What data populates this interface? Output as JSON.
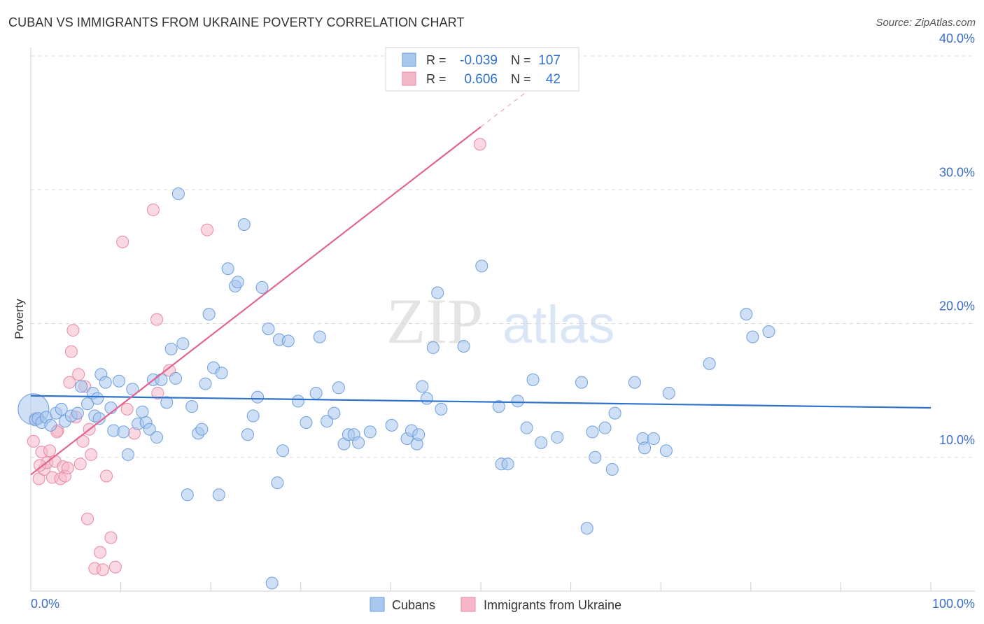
{
  "title": "CUBAN VS IMMIGRANTS FROM UKRAINE POVERTY CORRELATION CHART",
  "source": "Source: ZipAtlas.com",
  "watermark": {
    "part1": "ZIP",
    "part2": "atlas"
  },
  "colors": {
    "cubans_fill": "#a8c6ee",
    "cubans_stroke": "#6d9fdc",
    "cubans_line": "#2e72cc",
    "ukraine_fill": "#f4b8c9",
    "ukraine_stroke": "#e889a5",
    "ukraine_line": "#e06690",
    "axis_text": "#3d6ec9",
    "grid": "#d8d8d8"
  },
  "legend_top": {
    "rows": [
      {
        "r_label": "R =",
        "r_value": "-0.039",
        "n_label": "N =",
        "n_value": "107"
      },
      {
        "r_label": "R =",
        "r_value": "0.606",
        "n_label": "N =",
        "n_value": "42"
      }
    ]
  },
  "legend_bottom": {
    "items": [
      {
        "label": "Cubans"
      },
      {
        "label": "Immigrants from Ukraine"
      }
    ]
  },
  "chart_data": {
    "type": "scatter",
    "title": "CUBAN VS IMMIGRANTS FROM UKRAINE POVERTY CORRELATION CHART",
    "xlabel": "",
    "ylabel": "Poverty",
    "xlim": [
      0,
      100
    ],
    "ylim": [
      0,
      40
    ],
    "x_tick_labels": [
      "0.0%",
      "100.0%"
    ],
    "y_ticks": [
      10,
      20,
      30,
      40
    ],
    "y_tick_labels": [
      "10.0%",
      "20.0%",
      "30.0%",
      "40.0%"
    ],
    "grid": "horizontal dashed",
    "legend": "top-center",
    "series": [
      {
        "name": "Cubans",
        "R": -0.039,
        "N": 107,
        "trend": {
          "x0": 0,
          "y0": 14.6,
          "x1": 100,
          "y1": 13.7
        },
        "points": [
          [
            0.3,
            13.6
          ],
          [
            0.5,
            12.8
          ],
          [
            0.8,
            12.9
          ],
          [
            1.2,
            12.6
          ],
          [
            1.7,
            13.0
          ],
          [
            2.2,
            12.4
          ],
          [
            2.8,
            13.3
          ],
          [
            3.4,
            13.6
          ],
          [
            3.8,
            12.7
          ],
          [
            4.5,
            13.1
          ],
          [
            5.2,
            13.3
          ],
          [
            5.6,
            15.3
          ],
          [
            6.3,
            14.0
          ],
          [
            6.9,
            14.8
          ],
          [
            7.1,
            13.1
          ],
          [
            7.4,
            14.4
          ],
          [
            7.6,
            12.9
          ],
          [
            7.8,
            16.2
          ],
          [
            8.3,
            15.6
          ],
          [
            8.9,
            13.7
          ],
          [
            9.2,
            12.0
          ],
          [
            9.8,
            15.7
          ],
          [
            10.3,
            11.9
          ],
          [
            10.8,
            10.2
          ],
          [
            11.3,
            15.1
          ],
          [
            11.9,
            12.5
          ],
          [
            12.4,
            13.4
          ],
          [
            12.8,
            12.6
          ],
          [
            13.2,
            12.1
          ],
          [
            13.6,
            15.8
          ],
          [
            14.0,
            11.5
          ],
          [
            14.5,
            15.8
          ],
          [
            15.1,
            14.1
          ],
          [
            15.6,
            18.1
          ],
          [
            16.1,
            15.9
          ],
          [
            16.4,
            29.7
          ],
          [
            16.9,
            18.5
          ],
          [
            17.4,
            7.2
          ],
          [
            17.9,
            13.8
          ],
          [
            18.6,
            11.8
          ],
          [
            19.0,
            12.1
          ],
          [
            19.4,
            15.5
          ],
          [
            19.8,
            20.7
          ],
          [
            20.3,
            16.7
          ],
          [
            20.9,
            7.2
          ],
          [
            21.2,
            16.3
          ],
          [
            21.9,
            24.1
          ],
          [
            22.7,
            22.8
          ],
          [
            23.0,
            23.1
          ],
          [
            23.7,
            27.4
          ],
          [
            24.1,
            11.7
          ],
          [
            24.7,
            13.1
          ],
          [
            25.2,
            14.5
          ],
          [
            25.7,
            22.7
          ],
          [
            26.4,
            19.6
          ],
          [
            26.8,
            0.6
          ],
          [
            27.4,
            8.1
          ],
          [
            27.6,
            18.8
          ],
          [
            28.0,
            10.5
          ],
          [
            28.6,
            18.7
          ],
          [
            29.7,
            14.2
          ],
          [
            30.6,
            12.6
          ],
          [
            31.7,
            14.8
          ],
          [
            32.1,
            19.0
          ],
          [
            32.9,
            12.7
          ],
          [
            33.7,
            13.3
          ],
          [
            34.2,
            15.2
          ],
          [
            34.8,
            11.0
          ],
          [
            35.3,
            11.7
          ],
          [
            35.9,
            11.7
          ],
          [
            36.4,
            11.1
          ],
          [
            37.7,
            11.9
          ],
          [
            40.1,
            12.4
          ],
          [
            41.8,
            11.4
          ],
          [
            42.3,
            12.0
          ],
          [
            42.9,
            11.0
          ],
          [
            43.1,
            11.7
          ],
          [
            43.5,
            15.3
          ],
          [
            44.0,
            14.4
          ],
          [
            44.7,
            18.2
          ],
          [
            45.2,
            22.3
          ],
          [
            45.6,
            13.6
          ],
          [
            48.1,
            18.3
          ],
          [
            50.1,
            24.3
          ],
          [
            52.0,
            13.8
          ],
          [
            52.3,
            9.5
          ],
          [
            53.0,
            9.5
          ],
          [
            54.1,
            14.2
          ],
          [
            55.1,
            12.2
          ],
          [
            55.8,
            15.8
          ],
          [
            56.7,
            11.1
          ],
          [
            58.5,
            11.5
          ],
          [
            61.2,
            15.6
          ],
          [
            61.8,
            4.7
          ],
          [
            62.4,
            11.9
          ],
          [
            62.7,
            10.0
          ],
          [
            63.8,
            12.2
          ],
          [
            64.6,
            9.1
          ],
          [
            64.9,
            13.3
          ],
          [
            67.1,
            15.6
          ],
          [
            68.0,
            11.4
          ],
          [
            68.2,
            10.7
          ],
          [
            69.2,
            11.4
          ],
          [
            70.6,
            10.5
          ],
          [
            70.9,
            14.8
          ],
          [
            75.4,
            17.0
          ],
          [
            79.5,
            20.7
          ],
          [
            80.2,
            19.0
          ],
          [
            82.0,
            19.4
          ]
        ]
      },
      {
        "name": "Immigrants from Ukraine",
        "R": 0.606,
        "N": 42,
        "trend": {
          "x0": 0,
          "y0": 8.7,
          "x1": 50,
          "y1": 34.7,
          "dashed_to_x": 57,
          "dashed_to_y": 38.3
        },
        "points": [
          [
            0.3,
            11.2
          ],
          [
            0.5,
            12.9
          ],
          [
            0.9,
            8.4
          ],
          [
            1.2,
            10.4
          ],
          [
            1.5,
            9.1
          ],
          [
            1.8,
            9.6
          ],
          [
            2.1,
            10.5
          ],
          [
            2.4,
            8.5
          ],
          [
            2.7,
            9.7
          ],
          [
            3.0,
            12.0
          ],
          [
            3.3,
            8.4
          ],
          [
            3.6,
            9.3
          ],
          [
            3.8,
            8.6
          ],
          [
            4.1,
            9.2
          ],
          [
            4.3,
            15.6
          ],
          [
            4.5,
            17.9
          ],
          [
            4.7,
            19.5
          ],
          [
            5.0,
            13.0
          ],
          [
            5.3,
            16.2
          ],
          [
            5.5,
            9.5
          ],
          [
            5.8,
            11.2
          ],
          [
            6.0,
            15.3
          ],
          [
            6.3,
            5.4
          ],
          [
            6.5,
            12.1
          ],
          [
            6.7,
            10.2
          ],
          [
            7.1,
            1.7
          ],
          [
            7.7,
            2.9
          ],
          [
            8.0,
            1.6
          ],
          [
            8.4,
            8.6
          ],
          [
            8.9,
            4.0
          ],
          [
            9.4,
            1.8
          ],
          [
            10.2,
            26.1
          ],
          [
            10.7,
            13.6
          ],
          [
            11.5,
            11.8
          ],
          [
            13.6,
            28.5
          ],
          [
            14.0,
            20.3
          ],
          [
            14.1,
            14.8
          ],
          [
            15.4,
            16.5
          ],
          [
            19.6,
            27.0
          ],
          [
            49.9,
            33.4
          ],
          [
            1.0,
            9.4
          ],
          [
            2.9,
            11.9
          ]
        ]
      }
    ]
  }
}
